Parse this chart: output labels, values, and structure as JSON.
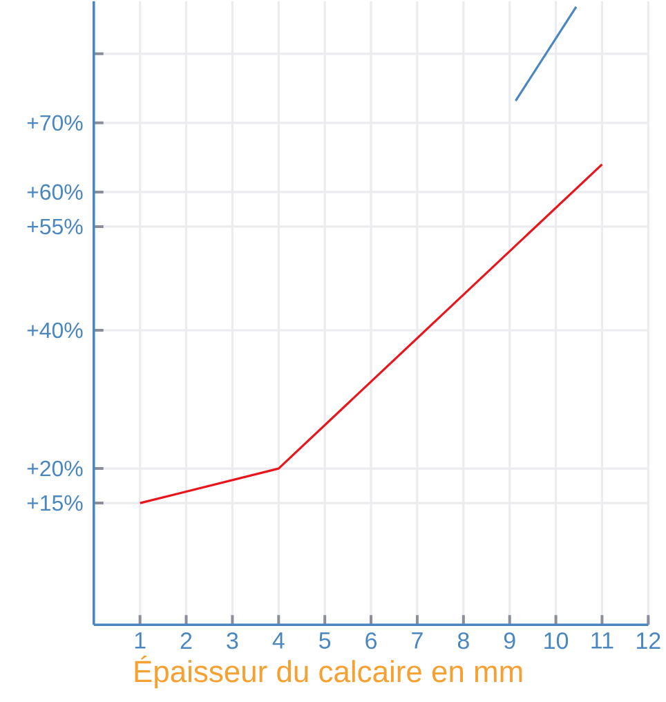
{
  "chart_data": {
    "type": "line",
    "xlabel": "Épaisseur du calcaire en mm",
    "xlim": [
      0,
      12
    ],
    "xticks": [
      1,
      2,
      3,
      4,
      5,
      6,
      7,
      8,
      9,
      10,
      11,
      12
    ],
    "ylim": [
      -2.6,
      87.6
    ],
    "yticks": [
      {
        "value": 15,
        "label": "+15%"
      },
      {
        "value": 20,
        "label": "+20%"
      },
      {
        "value": 40,
        "label": "+40%"
      },
      {
        "value": 55,
        "label": "+55%"
      },
      {
        "value": 60,
        "label": "+60%"
      },
      {
        "value": 70,
        "label": "+70%"
      },
      {
        "value": 80,
        "label": null
      }
    ],
    "grid": true,
    "marker": "none",
    "line_style": "solid",
    "series": [
      {
        "color": "#e8161c",
        "x": [
          1,
          4,
          11
        ],
        "values": [
          15,
          20,
          64
        ]
      },
      {
        "color": "#4a86c0",
        "x": [
          9.13,
          10.44
        ],
        "values": [
          73.2,
          86.8
        ]
      }
    ]
  }
}
